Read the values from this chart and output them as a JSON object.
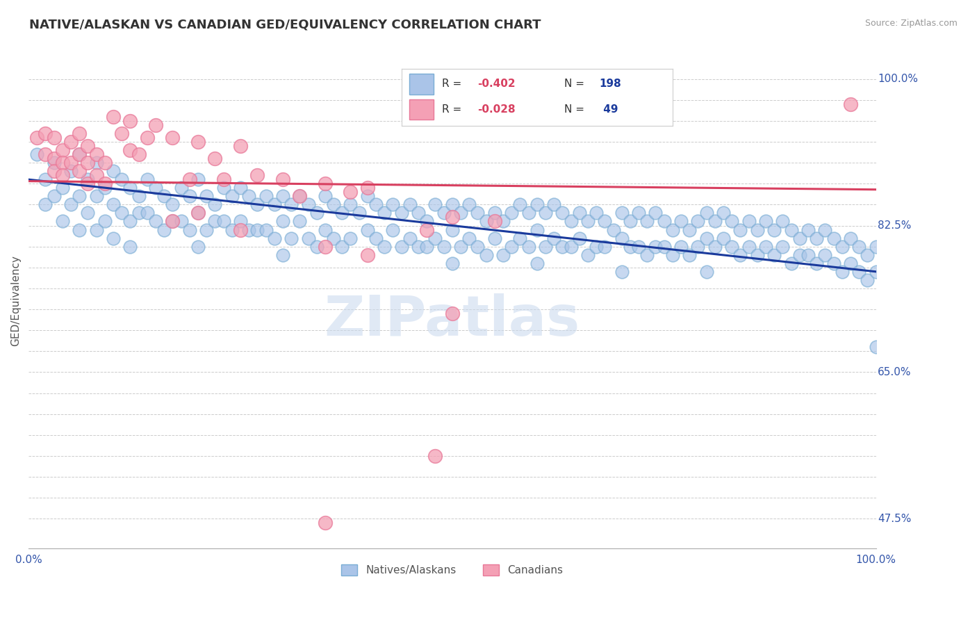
{
  "title": "NATIVE/ALASKAN VS CANADIAN GED/EQUIVALENCY CORRELATION CHART",
  "source_text": "Source: ZipAtlas.com",
  "ylabel": "GED/Equivalency",
  "xlim": [
    0.0,
    1.0
  ],
  "ylim": [
    0.44,
    1.03
  ],
  "title_fontsize": 13,
  "axis_label_fontsize": 11,
  "tick_fontsize": 11,
  "background_color": "#ffffff",
  "blue_color": "#aac4e8",
  "pink_color": "#f4a0b5",
  "blue_edge_color": "#7aadd4",
  "pink_edge_color": "#e87898",
  "blue_line_color": "#1a3a9c",
  "pink_line_color": "#d84060",
  "legend_blue_short": "Natives/Alaskans",
  "legend_pink_short": "Canadians",
  "watermark": "ZIPatlas",
  "blue_line_x0": 0.0,
  "blue_line_y0": 0.88,
  "blue_line_x1": 1.0,
  "blue_line_y1": 0.77,
  "pink_line_x0": 0.0,
  "pink_line_y0": 0.878,
  "pink_line_x1": 1.0,
  "pink_line_y1": 0.868,
  "all_yticks": [
    0.475,
    0.5,
    0.525,
    0.55,
    0.575,
    0.6,
    0.625,
    0.65,
    0.675,
    0.7,
    0.725,
    0.75,
    0.775,
    0.8,
    0.825,
    0.85,
    0.875,
    0.9,
    0.925,
    0.95,
    0.975,
    1.0
  ],
  "labeled_yticks": {
    "0.475": "47.5%",
    "0.65": "65.0%",
    "0.825": "82.5%",
    "1.0": "100.0%"
  },
  "blue_scatter": [
    [
      0.01,
      0.91
    ],
    [
      0.02,
      0.88
    ],
    [
      0.02,
      0.85
    ],
    [
      0.03,
      0.9
    ],
    [
      0.03,
      0.86
    ],
    [
      0.04,
      0.87
    ],
    [
      0.04,
      0.83
    ],
    [
      0.05,
      0.89
    ],
    [
      0.05,
      0.85
    ],
    [
      0.06,
      0.91
    ],
    [
      0.06,
      0.86
    ],
    [
      0.06,
      0.82
    ],
    [
      0.07,
      0.88
    ],
    [
      0.07,
      0.84
    ],
    [
      0.08,
      0.9
    ],
    [
      0.08,
      0.86
    ],
    [
      0.08,
      0.82
    ],
    [
      0.09,
      0.87
    ],
    [
      0.09,
      0.83
    ],
    [
      0.1,
      0.89
    ],
    [
      0.1,
      0.85
    ],
    [
      0.1,
      0.81
    ],
    [
      0.11,
      0.88
    ],
    [
      0.11,
      0.84
    ],
    [
      0.12,
      0.87
    ],
    [
      0.12,
      0.83
    ],
    [
      0.12,
      0.8
    ],
    [
      0.13,
      0.86
    ],
    [
      0.13,
      0.84
    ],
    [
      0.14,
      0.88
    ],
    [
      0.14,
      0.84
    ],
    [
      0.15,
      0.87
    ],
    [
      0.15,
      0.83
    ],
    [
      0.16,
      0.86
    ],
    [
      0.16,
      0.82
    ],
    [
      0.17,
      0.85
    ],
    [
      0.17,
      0.83
    ],
    [
      0.18,
      0.87
    ],
    [
      0.18,
      0.83
    ],
    [
      0.19,
      0.86
    ],
    [
      0.19,
      0.82
    ],
    [
      0.2,
      0.88
    ],
    [
      0.2,
      0.84
    ],
    [
      0.2,
      0.8
    ],
    [
      0.21,
      0.86
    ],
    [
      0.21,
      0.82
    ],
    [
      0.22,
      0.85
    ],
    [
      0.22,
      0.83
    ],
    [
      0.23,
      0.87
    ],
    [
      0.23,
      0.83
    ],
    [
      0.24,
      0.86
    ],
    [
      0.24,
      0.82
    ],
    [
      0.25,
      0.87
    ],
    [
      0.25,
      0.83
    ],
    [
      0.26,
      0.86
    ],
    [
      0.26,
      0.82
    ],
    [
      0.27,
      0.85
    ],
    [
      0.27,
      0.82
    ],
    [
      0.28,
      0.86
    ],
    [
      0.28,
      0.82
    ],
    [
      0.29,
      0.85
    ],
    [
      0.29,
      0.81
    ],
    [
      0.3,
      0.86
    ],
    [
      0.3,
      0.83
    ],
    [
      0.3,
      0.79
    ],
    [
      0.31,
      0.85
    ],
    [
      0.31,
      0.81
    ],
    [
      0.32,
      0.86
    ],
    [
      0.32,
      0.83
    ],
    [
      0.33,
      0.85
    ],
    [
      0.33,
      0.81
    ],
    [
      0.34,
      0.84
    ],
    [
      0.34,
      0.8
    ],
    [
      0.35,
      0.86
    ],
    [
      0.35,
      0.82
    ],
    [
      0.36,
      0.85
    ],
    [
      0.36,
      0.81
    ],
    [
      0.37,
      0.84
    ],
    [
      0.37,
      0.8
    ],
    [
      0.38,
      0.85
    ],
    [
      0.38,
      0.81
    ],
    [
      0.39,
      0.84
    ],
    [
      0.4,
      0.86
    ],
    [
      0.4,
      0.82
    ],
    [
      0.41,
      0.85
    ],
    [
      0.41,
      0.81
    ],
    [
      0.42,
      0.84
    ],
    [
      0.42,
      0.8
    ],
    [
      0.43,
      0.85
    ],
    [
      0.43,
      0.82
    ],
    [
      0.44,
      0.84
    ],
    [
      0.44,
      0.8
    ],
    [
      0.45,
      0.85
    ],
    [
      0.45,
      0.81
    ],
    [
      0.46,
      0.84
    ],
    [
      0.46,
      0.8
    ],
    [
      0.47,
      0.83
    ],
    [
      0.47,
      0.8
    ],
    [
      0.48,
      0.85
    ],
    [
      0.48,
      0.81
    ],
    [
      0.49,
      0.84
    ],
    [
      0.49,
      0.8
    ],
    [
      0.5,
      0.85
    ],
    [
      0.5,
      0.82
    ],
    [
      0.5,
      0.78
    ],
    [
      0.51,
      0.84
    ],
    [
      0.51,
      0.8
    ],
    [
      0.52,
      0.85
    ],
    [
      0.52,
      0.81
    ],
    [
      0.53,
      0.84
    ],
    [
      0.53,
      0.8
    ],
    [
      0.54,
      0.83
    ],
    [
      0.54,
      0.79
    ],
    [
      0.55,
      0.84
    ],
    [
      0.55,
      0.81
    ],
    [
      0.56,
      0.83
    ],
    [
      0.56,
      0.79
    ],
    [
      0.57,
      0.84
    ],
    [
      0.57,
      0.8
    ],
    [
      0.58,
      0.85
    ],
    [
      0.58,
      0.81
    ],
    [
      0.59,
      0.84
    ],
    [
      0.59,
      0.8
    ],
    [
      0.6,
      0.85
    ],
    [
      0.6,
      0.82
    ],
    [
      0.6,
      0.78
    ],
    [
      0.61,
      0.84
    ],
    [
      0.61,
      0.8
    ],
    [
      0.62,
      0.85
    ],
    [
      0.62,
      0.81
    ],
    [
      0.63,
      0.84
    ],
    [
      0.63,
      0.8
    ],
    [
      0.64,
      0.83
    ],
    [
      0.64,
      0.8
    ],
    [
      0.65,
      0.84
    ],
    [
      0.65,
      0.81
    ],
    [
      0.66,
      0.83
    ],
    [
      0.66,
      0.79
    ],
    [
      0.67,
      0.84
    ],
    [
      0.67,
      0.8
    ],
    [
      0.68,
      0.83
    ],
    [
      0.68,
      0.8
    ],
    [
      0.69,
      0.82
    ],
    [
      0.7,
      0.84
    ],
    [
      0.7,
      0.81
    ],
    [
      0.7,
      0.77
    ],
    [
      0.71,
      0.83
    ],
    [
      0.71,
      0.8
    ],
    [
      0.72,
      0.84
    ],
    [
      0.72,
      0.8
    ],
    [
      0.73,
      0.83
    ],
    [
      0.73,
      0.79
    ],
    [
      0.74,
      0.84
    ],
    [
      0.74,
      0.8
    ],
    [
      0.75,
      0.83
    ],
    [
      0.75,
      0.8
    ],
    [
      0.76,
      0.82
    ],
    [
      0.76,
      0.79
    ],
    [
      0.77,
      0.83
    ],
    [
      0.77,
      0.8
    ],
    [
      0.78,
      0.82
    ],
    [
      0.78,
      0.79
    ],
    [
      0.79,
      0.83
    ],
    [
      0.79,
      0.8
    ],
    [
      0.8,
      0.84
    ],
    [
      0.8,
      0.81
    ],
    [
      0.8,
      0.77
    ],
    [
      0.81,
      0.83
    ],
    [
      0.81,
      0.8
    ],
    [
      0.82,
      0.84
    ],
    [
      0.82,
      0.81
    ],
    [
      0.83,
      0.83
    ],
    [
      0.83,
      0.8
    ],
    [
      0.84,
      0.82
    ],
    [
      0.84,
      0.79
    ],
    [
      0.85,
      0.83
    ],
    [
      0.85,
      0.8
    ],
    [
      0.86,
      0.82
    ],
    [
      0.86,
      0.79
    ],
    [
      0.87,
      0.83
    ],
    [
      0.87,
      0.8
    ],
    [
      0.88,
      0.82
    ],
    [
      0.88,
      0.79
    ],
    [
      0.89,
      0.83
    ],
    [
      0.89,
      0.8
    ],
    [
      0.9,
      0.82
    ],
    [
      0.9,
      0.78
    ],
    [
      0.91,
      0.81
    ],
    [
      0.91,
      0.79
    ],
    [
      0.92,
      0.82
    ],
    [
      0.92,
      0.79
    ],
    [
      0.93,
      0.81
    ],
    [
      0.93,
      0.78
    ],
    [
      0.94,
      0.82
    ],
    [
      0.94,
      0.79
    ],
    [
      0.95,
      0.81
    ],
    [
      0.95,
      0.78
    ],
    [
      0.96,
      0.8
    ],
    [
      0.96,
      0.77
    ],
    [
      0.97,
      0.81
    ],
    [
      0.97,
      0.78
    ],
    [
      0.98,
      0.8
    ],
    [
      0.98,
      0.77
    ],
    [
      0.99,
      0.79
    ],
    [
      0.99,
      0.76
    ],
    [
      1.0,
      0.8
    ],
    [
      1.0,
      0.77
    ],
    [
      1.0,
      0.68
    ]
  ],
  "pink_scatter": [
    [
      0.01,
      0.93
    ],
    [
      0.02,
      0.935
    ],
    [
      0.02,
      0.91
    ],
    [
      0.03,
      0.93
    ],
    [
      0.03,
      0.905
    ],
    [
      0.03,
      0.89
    ],
    [
      0.04,
      0.915
    ],
    [
      0.04,
      0.9
    ],
    [
      0.04,
      0.885
    ],
    [
      0.05,
      0.925
    ],
    [
      0.05,
      0.9
    ],
    [
      0.06,
      0.935
    ],
    [
      0.06,
      0.91
    ],
    [
      0.06,
      0.89
    ],
    [
      0.07,
      0.92
    ],
    [
      0.07,
      0.9
    ],
    [
      0.07,
      0.875
    ],
    [
      0.08,
      0.91
    ],
    [
      0.08,
      0.885
    ],
    [
      0.09,
      0.9
    ],
    [
      0.09,
      0.875
    ],
    [
      0.1,
      0.955
    ],
    [
      0.11,
      0.935
    ],
    [
      0.12,
      0.95
    ],
    [
      0.12,
      0.915
    ],
    [
      0.13,
      0.91
    ],
    [
      0.14,
      0.93
    ],
    [
      0.15,
      0.945
    ],
    [
      0.17,
      0.93
    ],
    [
      0.19,
      0.88
    ],
    [
      0.2,
      0.925
    ],
    [
      0.22,
      0.905
    ],
    [
      0.23,
      0.88
    ],
    [
      0.25,
      0.92
    ],
    [
      0.27,
      0.885
    ],
    [
      0.3,
      0.88
    ],
    [
      0.32,
      0.86
    ],
    [
      0.35,
      0.875
    ],
    [
      0.38,
      0.865
    ],
    [
      0.4,
      0.87
    ],
    [
      0.17,
      0.83
    ],
    [
      0.2,
      0.84
    ],
    [
      0.25,
      0.82
    ],
    [
      0.35,
      0.8
    ],
    [
      0.4,
      0.79
    ],
    [
      0.47,
      0.82
    ],
    [
      0.5,
      0.835
    ],
    [
      0.55,
      0.83
    ],
    [
      0.48,
      0.55
    ],
    [
      0.35,
      0.47
    ],
    [
      0.97,
      0.97
    ],
    [
      0.5,
      0.72
    ]
  ]
}
